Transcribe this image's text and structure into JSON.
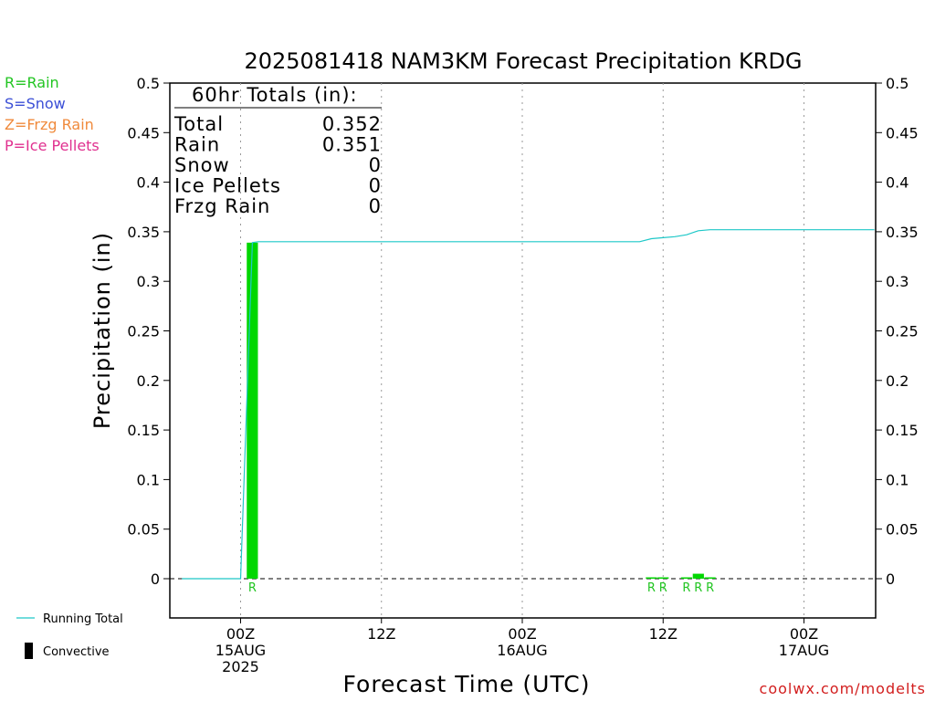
{
  "colors": {
    "rain": "#22c522",
    "snow": "#3b4fd6",
    "frzg_rain": "#f08a3c",
    "ice_pellets": "#e0308f",
    "running_total": "#1ec8c8",
    "bar": "#00d700",
    "credit": "#d21e1e"
  },
  "type_legend": [
    {
      "label": "R=Rain",
      "color_key": "rain"
    },
    {
      "label": "S=Snow",
      "color_key": "snow"
    },
    {
      "label": "Z=Frzg Rain",
      "color_key": "frzg_rain"
    },
    {
      "label": "P=Ice Pellets",
      "color_key": "ice_pellets"
    }
  ],
  "bottom_legend": {
    "running_total": "Running Total",
    "convective": "Convective"
  },
  "totals_box": {
    "heading": "60hr Totals (in):",
    "rows": [
      {
        "label": "Total",
        "value": "0.352"
      },
      {
        "label": "Rain",
        "value": "0.351"
      },
      {
        "label": "Snow",
        "value": "0"
      },
      {
        "label": "Ice Pellets",
        "value": "0"
      },
      {
        "label": "Frzg Rain",
        "value": "0"
      }
    ]
  },
  "credit": "coolwx.com/modelts",
  "chart_data": {
    "type": "bar",
    "title": "2025081418 NAM3KM Forecast Precipitation KRDG",
    "xlabel": "Forecast Time (UTC)",
    "ylabel": "Precipitation (in)",
    "ylim": [
      -0.04,
      0.5
    ],
    "y_ticks": [
      0,
      0.05,
      0.1,
      0.15,
      0.2,
      0.25,
      0.3,
      0.35,
      0.4,
      0.45,
      0.5
    ],
    "y_tick_labels": [
      "0",
      "0.05",
      "0.1",
      "0.15",
      "0.2",
      "0.25",
      "0.3",
      "0.35",
      "0.4",
      "0.45",
      "0.5"
    ],
    "x_range_hours": [
      -6,
      54
    ],
    "x_ticks": [
      {
        "hour": 0,
        "lines": [
          "00Z",
          "15AUG",
          "2025"
        ]
      },
      {
        "hour": 12,
        "lines": [
          "12Z"
        ]
      },
      {
        "hour": 24,
        "lines": [
          "00Z",
          "16AUG"
        ]
      },
      {
        "hour": 36,
        "lines": [
          "12Z"
        ]
      },
      {
        "hour": 48,
        "lines": [
          "00Z",
          "17AUG"
        ]
      }
    ],
    "grid": "vertical dotted at tick hours",
    "bars": [
      {
        "hour": 1,
        "value": 0.339,
        "type": "R"
      },
      {
        "hour": 35,
        "value": 0.001,
        "type": "R"
      },
      {
        "hour": 36,
        "value": 0.001,
        "type": "R"
      },
      {
        "hour": 38,
        "value": 0.001,
        "type": "R"
      },
      {
        "hour": 39,
        "value": 0.005,
        "type": "R"
      },
      {
        "hour": 40,
        "value": 0.001,
        "type": "R"
      }
    ],
    "running_total": [
      {
        "hour": -5,
        "value": 0
      },
      {
        "hour": 0,
        "value": 0
      },
      {
        "hour": 1,
        "value": 0.339
      },
      {
        "hour": 1.5,
        "value": 0.34
      },
      {
        "hour": 34,
        "value": 0.34
      },
      {
        "hour": 35,
        "value": 0.343
      },
      {
        "hour": 36,
        "value": 0.344
      },
      {
        "hour": 37,
        "value": 0.345
      },
      {
        "hour": 38,
        "value": 0.347
      },
      {
        "hour": 39,
        "value": 0.351
      },
      {
        "hour": 40,
        "value": 0.352
      },
      {
        "hour": 54,
        "value": 0.352
      }
    ]
  }
}
